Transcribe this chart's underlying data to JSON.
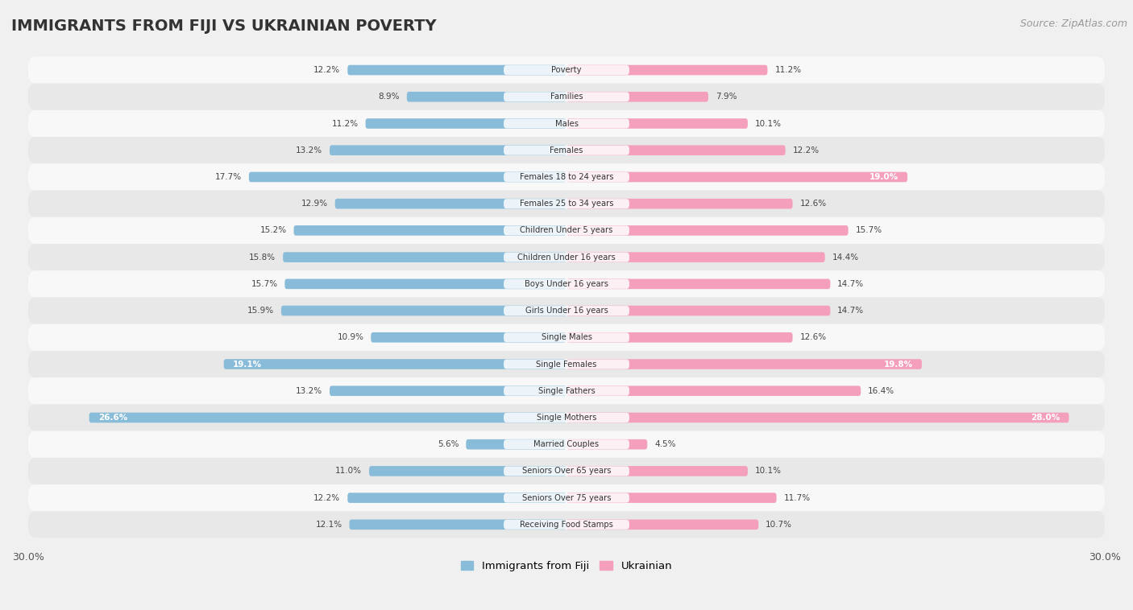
{
  "title": "IMMIGRANTS FROM FIJI VS UKRAINIAN POVERTY",
  "source": "Source: ZipAtlas.com",
  "categories": [
    "Poverty",
    "Families",
    "Males",
    "Females",
    "Females 18 to 24 years",
    "Females 25 to 34 years",
    "Children Under 5 years",
    "Children Under 16 years",
    "Boys Under 16 years",
    "Girls Under 16 years",
    "Single Males",
    "Single Females",
    "Single Fathers",
    "Single Mothers",
    "Married Couples",
    "Seniors Over 65 years",
    "Seniors Over 75 years",
    "Receiving Food Stamps"
  ],
  "fiji_values": [
    12.2,
    8.9,
    11.2,
    13.2,
    17.7,
    12.9,
    15.2,
    15.8,
    15.7,
    15.9,
    10.9,
    19.1,
    13.2,
    26.6,
    5.6,
    11.0,
    12.2,
    12.1
  ],
  "ukrainian_values": [
    11.2,
    7.9,
    10.1,
    12.2,
    19.0,
    12.6,
    15.7,
    14.4,
    14.7,
    14.7,
    12.6,
    19.8,
    16.4,
    28.0,
    4.5,
    10.1,
    11.7,
    10.7
  ],
  "fiji_color": "#89bcd8",
  "ukrainian_color": "#f4a0bd",
  "fiji_label_inside_color": "#5a97be",
  "ukrainian_label_inside_color": "#e8799a",
  "background_color": "#f0f0f0",
  "row_light_color": "#f8f8f8",
  "row_dark_color": "#e8e8e8",
  "max_val": 30.0,
  "label_fiji": "Immigrants from Fiji",
  "label_ukrainian": "Ukrainian",
  "title_fontsize": 14,
  "source_fontsize": 9,
  "bar_height": 0.38,
  "fiji_inside_labels": [
    11,
    13
  ],
  "ukr_inside_labels": [
    4,
    11,
    13
  ]
}
